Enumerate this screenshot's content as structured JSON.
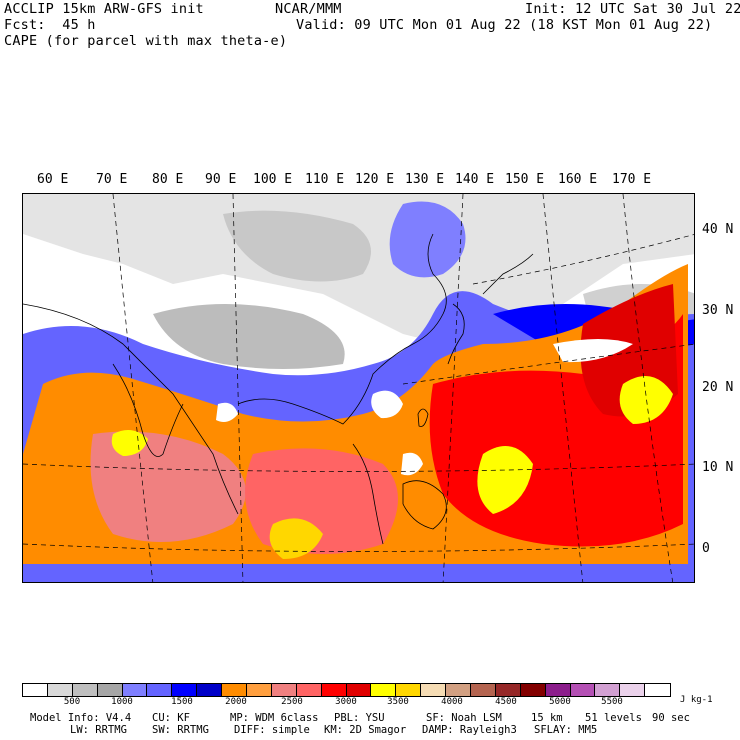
{
  "header": {
    "model": "ACCLIP 15km ARW-GFS init",
    "org": "NCAR/MMM",
    "init": "Init: 12 UTC Sat 30 Jul 22",
    "fcst": "Fcst:  45 h",
    "valid": "Valid: 09 UTC Mon 01 Aug 22 (18 KST Mon 01 Aug 22)",
    "field": "CAPE (for parcel with max theta-e)"
  },
  "lon_labels": [
    "60 E",
    "70 E",
    "80 E",
    "90 E",
    "100 E",
    "110 E",
    "120 E",
    "130 E",
    "140 E",
    "150 E",
    "160 E",
    "170 E"
  ],
  "lat_labels": [
    "40 N",
    "30 N",
    "20 N",
    "10 N",
    "0"
  ],
  "colorbar": {
    "colors": [
      "#ffffff",
      "#d9d9d9",
      "#bfbfbf",
      "#a6a6a6",
      "#7f7fff",
      "#6464ff",
      "#0000ff",
      "#0000c8",
      "#ff8c00",
      "#ff9f3f",
      "#f08080",
      "#ff6464",
      "#ff0000",
      "#e00000",
      "#ffff00",
      "#ffd700",
      "#f5dcb4",
      "#d2a082",
      "#b46450",
      "#962828",
      "#820000",
      "#8c1e8c",
      "#b450b4",
      "#d2a0d2",
      "#ebd2eb",
      "#ffffff"
    ],
    "ticks": [
      "500",
      "1000",
      "1500",
      "2000",
      "2500",
      "3000",
      "3500",
      "4000",
      "4500",
      "5000",
      "5500"
    ],
    "unit": "J kg-1"
  },
  "model_info": {
    "line1": [
      "Model Info: V4.4",
      "CU: KF",
      "MP: WDM 6class",
      "PBL: YSU",
      "SF: Noah LSM",
      "15 km",
      "51 levels",
      "90 sec"
    ],
    "line2": [
      "LW: RRTMG",
      "SW: RRTMG",
      "DIFF: simple",
      "KM: 2D Smagor",
      "DAMP: Rayleigh3",
      "SFLAY: MM5"
    ]
  }
}
